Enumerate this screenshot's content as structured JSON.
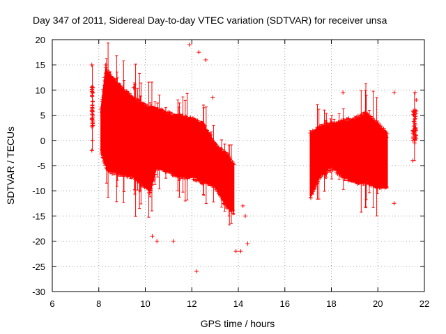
{
  "chart_data": {
    "type": "scatter",
    "title": "Day 347 of 2011, Sidereal Day-to-day VTEC variation (SDTVAR) for receiver unsa",
    "xlabel": "GPS time / hours",
    "ylabel": "SDTVAR / TECUs",
    "xlim": [
      6,
      22
    ],
    "ylim": [
      -30,
      20
    ],
    "x_ticks": [
      6,
      8,
      10,
      12,
      14,
      16,
      18,
      20,
      22
    ],
    "y_ticks": [
      -30,
      -25,
      -20,
      -15,
      -10,
      -5,
      0,
      5,
      10,
      15,
      20
    ],
    "x_tick_labels": [
      "6",
      "8",
      "10",
      "12",
      "14",
      "16",
      "18",
      "20",
      "22"
    ],
    "y_tick_labels": [
      "-30",
      "-25",
      "-20",
      "-15",
      "-10",
      "-5",
      "0",
      "5",
      "10",
      "15",
      "20"
    ],
    "grid": true,
    "marker": "+",
    "series_color": "#ff0000",
    "bands": [
      {
        "name": "early-burst",
        "points": [
          [
            7.7,
            -2
          ],
          [
            7.7,
            10.5
          ],
          [
            7.75,
            3
          ],
          [
            7.72,
            6
          ],
          [
            7.7,
            15
          ],
          [
            7.72,
            0
          ]
        ]
      },
      {
        "name": "main-envelope-a",
        "upper": [
          [
            8.1,
            6
          ],
          [
            8.3,
            14
          ],
          [
            8.6,
            12
          ],
          [
            9.0,
            10
          ],
          [
            9.5,
            8
          ],
          [
            10.0,
            6.5
          ],
          [
            10.5,
            6
          ],
          [
            11.0,
            5
          ],
          [
            11.5,
            4.5
          ],
          [
            12.0,
            4
          ],
          [
            12.5,
            3
          ],
          [
            13.0,
            -1
          ],
          [
            13.5,
            -3
          ],
          [
            13.8,
            -5
          ]
        ],
        "lower": [
          [
            8.1,
            -2
          ],
          [
            8.3,
            -5
          ],
          [
            8.6,
            -6
          ],
          [
            9.0,
            -6.5
          ],
          [
            9.5,
            -7
          ],
          [
            10.0,
            -9
          ],
          [
            10.2,
            -10
          ],
          [
            10.5,
            -5
          ],
          [
            11.0,
            -6
          ],
          [
            11.5,
            -7
          ],
          [
            12.0,
            -7
          ],
          [
            12.5,
            -8
          ],
          [
            13.0,
            -9
          ],
          [
            13.5,
            -13
          ],
          [
            13.8,
            -14
          ]
        ]
      },
      {
        "name": "main-envelope-b",
        "upper": [
          [
            17.1,
            1
          ],
          [
            17.5,
            2.5
          ],
          [
            18.0,
            3
          ],
          [
            18.5,
            3.5
          ],
          [
            19.0,
            4
          ],
          [
            19.5,
            5
          ],
          [
            20.0,
            3
          ],
          [
            20.4,
            1
          ]
        ],
        "lower": [
          [
            17.1,
            -11
          ],
          [
            17.5,
            -7
          ],
          [
            18.0,
            -5
          ],
          [
            18.5,
            -7
          ],
          [
            19.0,
            -8
          ],
          [
            19.5,
            -8
          ],
          [
            20.0,
            -9
          ],
          [
            20.4,
            -9
          ]
        ]
      },
      {
        "name": "late-burst",
        "points": [
          [
            21.5,
            -4
          ],
          [
            21.6,
            9.5
          ],
          [
            21.55,
            5
          ],
          [
            21.6,
            0
          ],
          [
            21.65,
            8
          ]
        ]
      }
    ],
    "outliers": [
      [
        8.3,
        15
      ],
      [
        9.5,
        10.5
      ],
      [
        10.3,
        -19
      ],
      [
        10.5,
        -20
      ],
      [
        11.2,
        -20
      ],
      [
        11.9,
        19
      ],
      [
        12.3,
        17.5
      ],
      [
        12.6,
        16
      ],
      [
        12.2,
        -26
      ],
      [
        14.1,
        -22
      ],
      [
        14.4,
        -20.5
      ],
      [
        13.9,
        -22
      ],
      [
        18.5,
        9.5
      ],
      [
        20.7,
        9.5
      ],
      [
        20.7,
        -12.5
      ],
      [
        12.9,
        8.5
      ],
      [
        14.3,
        -15
      ],
      [
        14.2,
        -13
      ]
    ]
  }
}
